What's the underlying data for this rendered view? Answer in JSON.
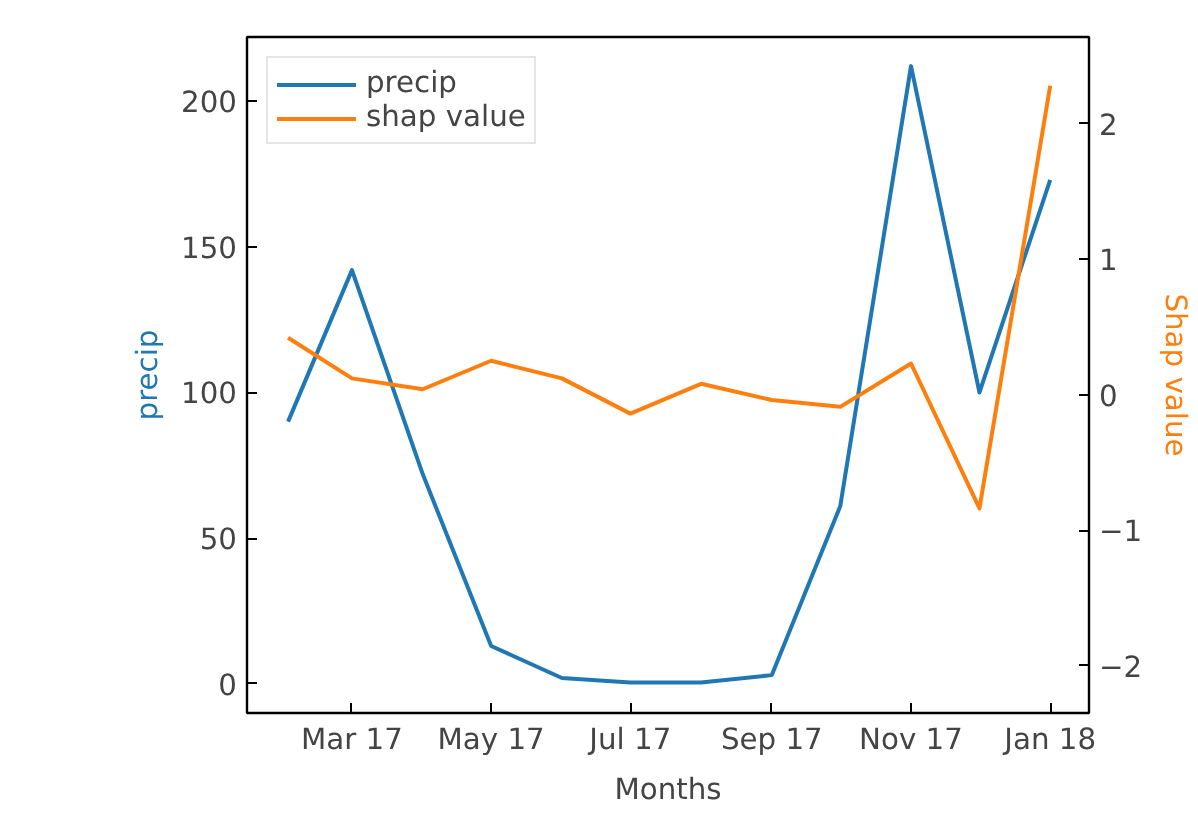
{
  "chart_data": {
    "type": "line",
    "xlabel": "Months",
    "ylabel": "precip",
    "y2label": "Shap value",
    "x": [
      "2017-02-01",
      "2017-03-01",
      "2017-04-01",
      "2017-05-01",
      "2017-06-01",
      "2017-07-01",
      "2017-08-01",
      "2017-09-01",
      "2017-10-01",
      "2017-11-01",
      "2017-12-01",
      "2018-01-01"
    ],
    "series": [
      {
        "name": "precip",
        "color": "#1f77b4",
        "values": [
          90,
          142,
          72,
          13,
          2,
          0.5,
          0.5,
          3,
          61,
          212,
          100,
          173
        ]
      },
      {
        "name": "shap value",
        "color": "#ff7f0e",
        "axis": "y2",
        "values": [
          0.42,
          0.12,
          0.04,
          0.25,
          0.12,
          -0.14,
          0.08,
          -0.04,
          -0.09,
          0.23,
          -0.84,
          2.28
        ]
      }
    ],
    "xlim": [
      "2017-01-14",
      "2018-01-18"
    ],
    "xticks": [
      {
        "value": "2017-03-01",
        "label": "Mar 17"
      },
      {
        "value": "2017-05-01",
        "label": "May 17"
      },
      {
        "value": "2017-07-01",
        "label": "Jul 17"
      },
      {
        "value": "2017-09-01",
        "label": "Sep 17"
      },
      {
        "value": "2017-11-01",
        "label": "Nov 17"
      },
      {
        "value": "2018-01-01",
        "label": "Jan 18"
      }
    ],
    "ylim": [
      -10,
      222
    ],
    "yticks": [
      0,
      50,
      100,
      150,
      200
    ],
    "y2lim": [
      -2.35,
      2.64
    ],
    "y2ticks": [
      {
        "value": -2,
        "label": "−2"
      },
      {
        "value": -1,
        "label": "−1"
      },
      0,
      1,
      2
    ],
    "grid": false,
    "legend": "top left",
    "marker": "none",
    "line_style": "solid"
  }
}
